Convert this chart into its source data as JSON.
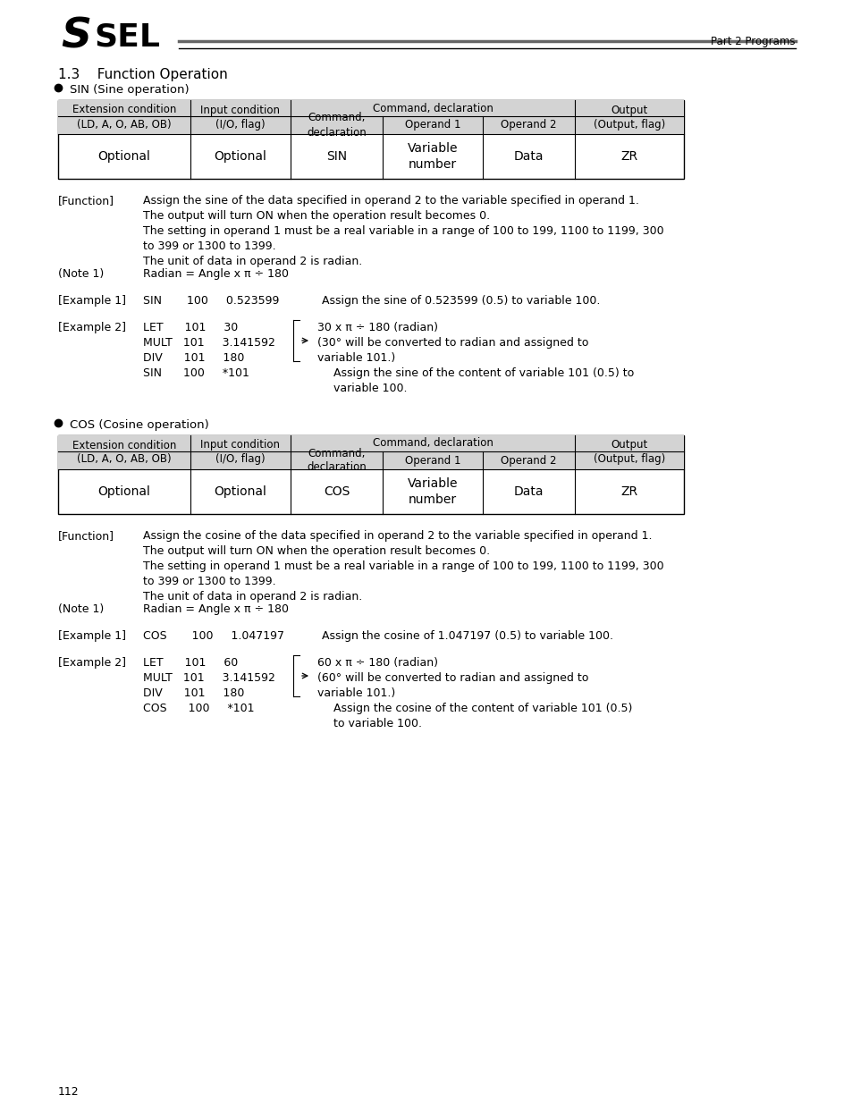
{
  "page_number": "112",
  "header_title": "Part 2 Programs",
  "section_title": "1.3    Function Operation",
  "bullet1_title": "SIN (Sine operation)",
  "bullet2_title": "COS (Cosine operation)",
  "sin_table_data_row": [
    "Optional",
    "Optional",
    "SIN",
    "Variable\nnumber",
    "Data",
    "ZR"
  ],
  "cos_table_data_row": [
    "Optional",
    "Optional",
    "COS",
    "Variable\nnumber",
    "Data",
    "ZR"
  ],
  "sin_function_text": "Assign the sine of the data specified in operand 2 to the variable specified in operand 1.\nThe output will turn ON when the operation result becomes 0.\nThe setting in operand 1 must be a real variable in a range of 100 to 199, 1100 to 1199, 300\nto 399 or 1300 to 1399.\nThe unit of data in operand 2 is radian.",
  "sin_note1_text": "Radian = Angle x π ÷ 180",
  "sin_ex1_code": "SIN       100     0.523599",
  "sin_ex1_desc": "Assign the sine of 0.523599 (0.5) to variable 100.",
  "sin_ex2_code_lines": [
    "LET      101     30",
    "MULT   101     3.141592",
    "DIV      101     180",
    "SIN      100     *101"
  ],
  "sin_ex2_desc_lines": [
    "30 x π ÷ 180 (radian)",
    "(30° will be converted to radian and assigned to",
    "variable 101.)",
    "Assign the sine of the content of variable 101 (0.5) to",
    "variable 100."
  ],
  "cos_function_text": "Assign the cosine of the data specified in operand 2 to the variable specified in operand 1.\nThe output will turn ON when the operation result becomes 0.\nThe setting in operand 1 must be a real variable in a range of 100 to 199, 1100 to 1199, 300\nto 399 or 1300 to 1399.\nThe unit of data in operand 2 is radian.",
  "cos_note1_text": "Radian = Angle x π ÷ 180",
  "cos_ex1_code": "COS       100     1.047197",
  "cos_ex1_desc": "Assign the cosine of 1.047197 (0.5) to variable 100.",
  "cos_ex2_code_lines": [
    "LET      101     60",
    "MULT   101     3.141592",
    "DIV      101     180",
    "COS      100     *101"
  ],
  "cos_ex2_desc_lines": [
    "60 x π ÷ 180 (radian)",
    "(60° will be converted to radian and assigned to",
    "variable 101.)",
    "Assign the cosine of the content of variable 101 (0.5)",
    "to variable 100."
  ],
  "bg_color": "#ffffff",
  "table_header_bg": "#d3d3d3",
  "table_border_color": "#000000"
}
